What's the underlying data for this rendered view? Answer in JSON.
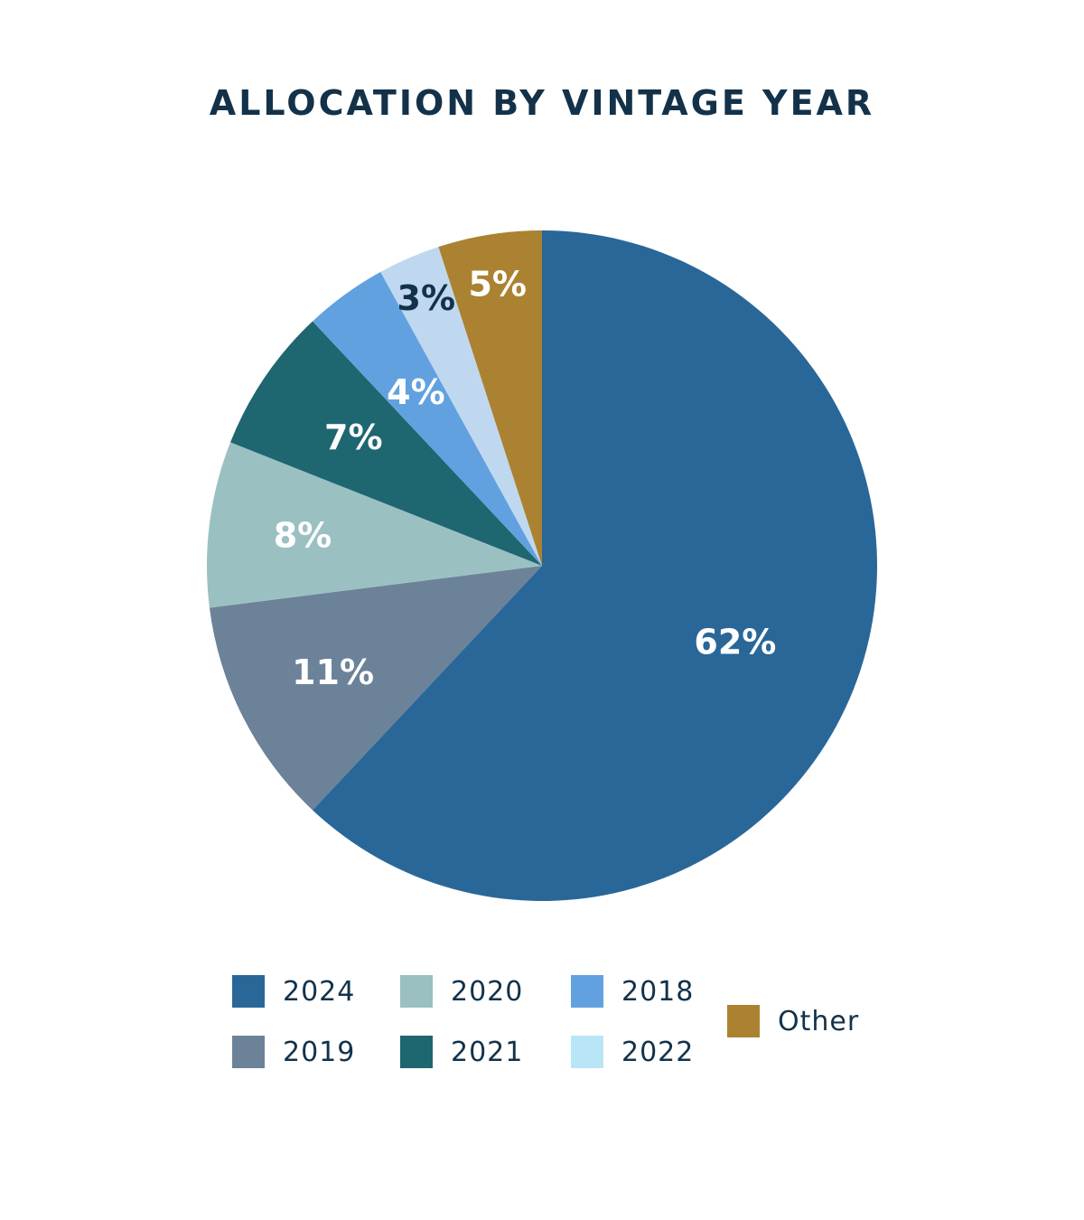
{
  "chart_data": {
    "type": "pie",
    "title": "ALLOCATION BY VINTAGE YEAR",
    "slices": [
      {
        "label": "2024",
        "value": 62,
        "display": "62%",
        "color": "#2a6799",
        "label_color": "#ffffff"
      },
      {
        "label": "2019",
        "value": 11,
        "display": "11%",
        "color": "#6c8299",
        "label_color": "#ffffff"
      },
      {
        "label": "2020",
        "value": 8,
        "display": "8%",
        "color": "#9bc0c1",
        "label_color": "#ffffff"
      },
      {
        "label": "2021",
        "value": 7,
        "display": "7%",
        "color": "#1e6670",
        "label_color": "#ffffff"
      },
      {
        "label": "2018",
        "value": 4,
        "display": "4%",
        "color": "#62a1e0",
        "label_color": "#ffffff"
      },
      {
        "label": "2022",
        "value": 3,
        "display": "3%",
        "color": "#bfd8f0",
        "label_color": "#13324a"
      },
      {
        "label": "Other",
        "value": 5,
        "display": "5%",
        "color": "#ab8232",
        "label_color": "#ffffff"
      }
    ],
    "legend": [
      {
        "label": "2024",
        "color": "#2a6799"
      },
      {
        "label": "2020",
        "color": "#9bc0c1"
      },
      {
        "label": "2018",
        "color": "#62a1e0"
      },
      {
        "label": "Other",
        "color": "#ab8232"
      },
      {
        "label": "2019",
        "color": "#6c8299"
      },
      {
        "label": "2021",
        "color": "#1e6670"
      },
      {
        "label": "2022",
        "color": "#b9e6f7"
      }
    ],
    "legend_position": "bottom",
    "direction": "clockwise",
    "start": "top"
  }
}
